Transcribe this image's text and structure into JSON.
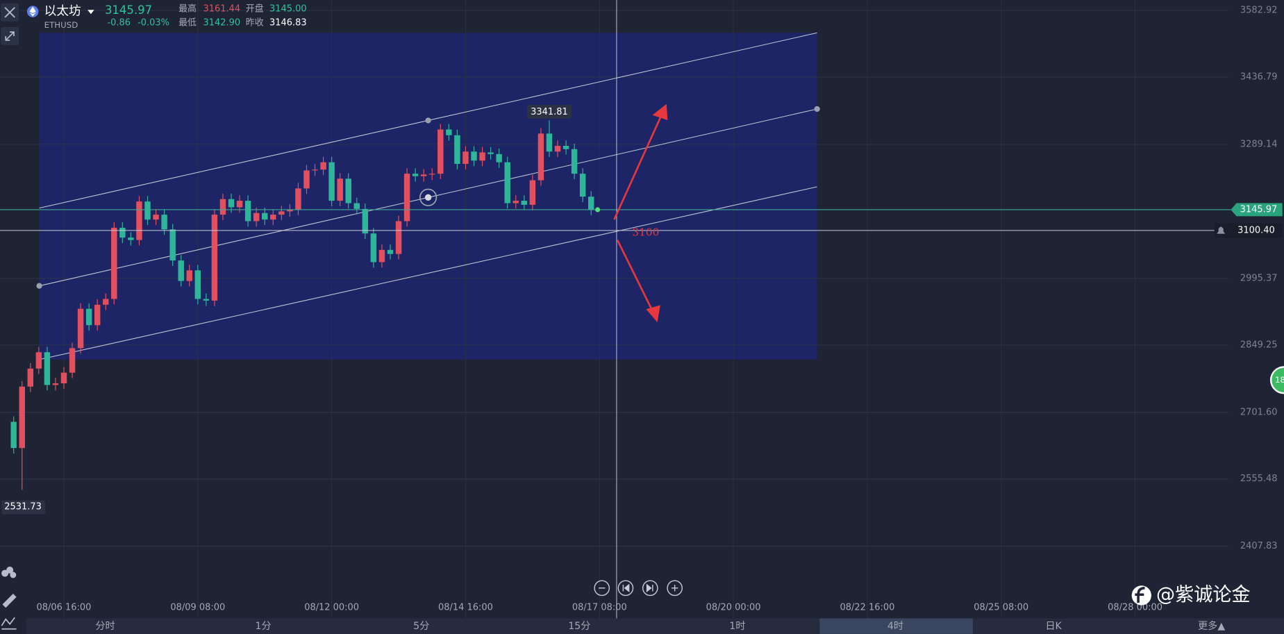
{
  "header": {
    "name": "以太坊",
    "symbol": "ETHUSD",
    "change": "-0.86",
    "change_pct": "-0.03%",
    "high_label": "最高",
    "high": "3161.44",
    "open_label": "开盘",
    "open": "3145.00",
    "low_label": "最低",
    "low": "3142.90",
    "prev_close_label": "昨收",
    "prev_close": "3146.83"
  },
  "tabs": [
    "分时",
    "1分",
    "5分",
    "15分",
    "1时",
    "4时",
    "日K",
    "更多▲"
  ],
  "active_tab": 5,
  "watermark": "@紫诚论金",
  "side_badge": "18",
  "chart_data": {
    "type": "candlestick",
    "grid": true,
    "up_color": "#e2505f",
    "down_color": "#2fb59a",
    "xlim": [
      -1.634,
      145.14
    ],
    "ylim": [
      2249.8,
      3605.6
    ],
    "xticks": [
      {
        "value": 6,
        "label": "08/06 16:00"
      },
      {
        "value": 22,
        "label": "08/09 08:00"
      },
      {
        "value": 38,
        "label": "08/12 00:00"
      },
      {
        "value": 54,
        "label": "08/14 16:00"
      },
      {
        "value": 70,
        "label": "08/17 08:00"
      },
      {
        "value": 86,
        "label": "08/20 00:00"
      },
      {
        "value": 102,
        "label": "08/22 16:00"
      },
      {
        "value": 118,
        "label": "08/25 08:00"
      },
      {
        "value": 134,
        "label": "08/28 00:00"
      }
    ],
    "yticks": [
      3582.92,
      3436.79,
      3289.14,
      2995.37,
      2849.25,
      {
        "value": 2701.6,
        "label": "2701.60"
      },
      2555.48,
      2407.83
    ],
    "open": [
      2680.8,
      2623.3,
      2758.0,
      2797.5,
      2833.4,
      2761.6,
      2765.2,
      2788.6,
      2842.4,
      2928.6,
      2892.7,
      2937.6,
      2950.2,
      3106.4,
      3084.8,
      3079.5,
      3163.9,
      3124.3,
      3135.1,
      3102.8,
      3034.6,
      2989.7,
      3013.0,
      2950.2,
      2946.6,
      3135.1,
      3169.2,
      3151.3,
      3165.6,
      3120.8,
      3138.7,
      3124.3,
      3135.1,
      3142.3,
      3145.9,
      3192.6,
      3232.1,
      3233.9,
      3250.0,
      3165.6,
      3214.1,
      3160.3,
      3147.7,
      3093.8,
      3031.0,
      3057.9,
      3048.9,
      3120.8,
      3224.9,
      3219.5,
      3223.1,
      3224.9,
      3321.9,
      3309.3,
      3246.5,
      3273.4,
      3253.6,
      3271.6,
      3268.0,
      3250.0,
      3160.3,
      3165.6,
      3156.7,
      3210.5,
      3312.9,
      3273.4,
      3286.0,
      3278.8,
      3224.9,
      3174.6
    ],
    "high": [
      2692.8,
      2770.0,
      2809.5,
      2845.4,
      2845.4,
      2777.2,
      2800.6,
      2854.4,
      2940.6,
      2940.6,
      2949.6,
      2962.2,
      3118.4,
      3118.4,
      3096.8,
      3175.9,
      3175.9,
      3147.1,
      3147.1,
      3114.8,
      3046.6,
      3025.0,
      3025.0,
      2962.2,
      3147.1,
      3181.2,
      3181.2,
      3177.6,
      3177.6,
      3150.7,
      3150.7,
      3147.1,
      3154.3,
      3157.9,
      3204.6,
      3244.1,
      3245.9,
      3262.0,
      3262.0,
      3226.1,
      3226.1,
      3172.3,
      3159.7,
      3105.8,
      3069.9,
      3069.9,
      3132.8,
      3236.9,
      3236.9,
      3235.1,
      3236.9,
      3333.9,
      3333.9,
      3321.3,
      3285.4,
      3285.4,
      3283.6,
      3283.6,
      3280.0,
      3262.0,
      3177.6,
      3177.6,
      3222.5,
      3324.9,
      3341.81,
      3298.0,
      3298.0,
      3290.8,
      3236.9,
      3186.6
    ],
    "low": [
      2611.3,
      2531.73,
      2746.0,
      2785.5,
      2749.6,
      2749.6,
      2753.2,
      2776.6,
      2830.4,
      2880.7,
      2880.7,
      2925.6,
      2938.2,
      3072.8,
      3067.5,
      3067.5,
      3112.3,
      3112.3,
      3090.8,
      3022.6,
      2977.7,
      2977.7,
      2938.2,
      2934.6,
      2934.6,
      3123.1,
      3139.3,
      3139.3,
      3108.8,
      3108.8,
      3112.3,
      3112.3,
      3123.1,
      3130.3,
      3133.9,
      3180.6,
      3220.1,
      3221.9,
      3153.6,
      3153.6,
      3148.3,
      3135.7,
      3081.8,
      3019.0,
      3019.0,
      3036.9,
      3036.9,
      3108.8,
      3207.5,
      3207.5,
      3211.1,
      3212.9,
      3297.3,
      3234.5,
      3234.5,
      3241.6,
      3241.6,
      3256.0,
      3238.0,
      3148.3,
      3148.3,
      3144.7,
      3144.7,
      3198.5,
      3261.4,
      3261.4,
      3266.8,
      3212.9,
      3162.6,
      3133.97
    ],
    "close": [
      2623.3,
      2758.0,
      2797.5,
      2833.4,
      2761.6,
      2765.2,
      2788.6,
      2842.4,
      2928.6,
      2892.7,
      2937.6,
      2950.2,
      3106.4,
      3084.8,
      3079.5,
      3163.9,
      3124.3,
      3135.1,
      3102.8,
      3034.6,
      2989.7,
      3013.0,
      2950.2,
      2946.6,
      3135.1,
      3169.2,
      3151.3,
      3165.6,
      3120.8,
      3138.7,
      3124.3,
      3135.1,
      3142.3,
      3145.9,
      3192.6,
      3232.1,
      3233.9,
      3250.0,
      3165.6,
      3214.1,
      3160.3,
      3147.7,
      3093.8,
      3031.0,
      3057.9,
      3048.9,
      3120.8,
      3224.9,
      3219.5,
      3223.1,
      3224.9,
      3321.9,
      3309.3,
      3246.5,
      3273.4,
      3253.6,
      3271.6,
      3268.0,
      3250.0,
      3160.3,
      3165.6,
      3156.7,
      3210.5,
      3312.9,
      3273.4,
      3286.0,
      3278.8,
      3224.9,
      3174.6,
      3145.97
    ],
    "channel": {
      "x": [
        3.06,
        96.0
      ],
      "upper": [
        3149.5,
        3533.8
      ],
      "middle": [
        2978.9,
        3366.8
      ],
      "lower": [
        2817.3,
        3196.2
      ]
    },
    "alert_price": {
      "value": 3100.4,
      "label": "3100.40"
    },
    "annotation": "3100"
  }
}
